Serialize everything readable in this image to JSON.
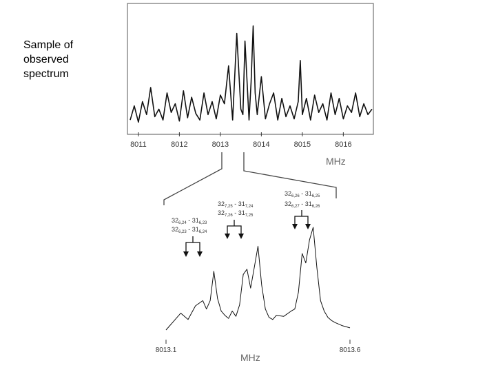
{
  "caption": {
    "lines": [
      "Sample of",
      "observed",
      "spectrum"
    ]
  },
  "chart_data": [
    {
      "type": "line",
      "title": "",
      "xlabel": "MHz",
      "ylabel": "",
      "xlim": [
        8010.8,
        8016.7
      ],
      "ticks": [
        8011,
        8012,
        8013,
        8014,
        8015,
        8016
      ],
      "tick_labels": [
        "8011",
        "8012",
        "8013",
        "8014",
        "8015",
        "8016"
      ],
      "grid": false,
      "series": [
        {
          "x": [
            8010.8,
            8010.9,
            8011.0,
            8011.1,
            8011.2,
            8011.3,
            8011.4,
            8011.5,
            8011.6,
            8011.7,
            8011.8,
            8011.9,
            8012.0,
            8012.1,
            8012.2,
            8012.3,
            8012.4,
            8012.5,
            8012.6,
            8012.7,
            8012.8,
            8012.9,
            8013.0,
            8013.1,
            8013.2,
            8013.3,
            8013.4,
            8013.5,
            8013.55,
            8013.6,
            8013.7,
            8013.75,
            8013.8,
            8013.85,
            8013.9,
            8014.0,
            8014.1,
            8014.2,
            8014.3,
            8014.4,
            8014.5,
            8014.6,
            8014.7,
            8014.8,
            8014.9,
            8014.95,
            8015.0,
            8015.1,
            8015.2,
            8015.3,
            8015.4,
            8015.5,
            8015.6,
            8015.7,
            8015.8,
            8015.9,
            8016.0,
            8016.1,
            8016.2,
            8016.3,
            8016.4,
            8016.5,
            8016.6,
            8016.7
          ],
          "y": [
            0.05,
            0.18,
            0.03,
            0.22,
            0.1,
            0.35,
            0.08,
            0.15,
            0.05,
            0.3,
            0.12,
            0.2,
            0.04,
            0.32,
            0.07,
            0.26,
            0.11,
            0.05,
            0.3,
            0.1,
            0.22,
            0.06,
            0.28,
            0.2,
            0.55,
            0.05,
            0.85,
            0.15,
            0.1,
            0.78,
            0.05,
            0.4,
            0.92,
            0.3,
            0.1,
            0.45,
            0.06,
            0.2,
            0.3,
            0.05,
            0.25,
            0.08,
            0.18,
            0.06,
            0.22,
            0.6,
            0.1,
            0.25,
            0.05,
            0.28,
            0.12,
            0.2,
            0.05,
            0.3,
            0.1,
            0.25,
            0.06,
            0.18,
            0.12,
            0.3,
            0.08,
            0.2,
            0.1,
            0.15
          ]
        }
      ]
    },
    {
      "type": "line",
      "title": "",
      "xlabel": "MHz",
      "ylabel": "",
      "xlim": [
        8013.1,
        8013.6
      ],
      "ticks": [
        8013.1,
        8013.6
      ],
      "tick_labels": [
        "8013.1",
        "8013.6"
      ],
      "grid": false,
      "series": [
        {
          "x": [
            8013.1,
            8013.12,
            8013.14,
            8013.16,
            8013.18,
            8013.2,
            8013.21,
            8013.22,
            8013.23,
            8013.24,
            8013.25,
            8013.26,
            8013.27,
            8013.28,
            8013.29,
            8013.3,
            8013.31,
            8013.32,
            8013.33,
            8013.34,
            8013.35,
            8013.36,
            8013.37,
            8013.38,
            8013.39,
            8013.4,
            8013.42,
            8013.44,
            8013.45,
            8013.46,
            8013.47,
            8013.48,
            8013.49,
            8013.5,
            8013.51,
            8013.52,
            8013.53,
            8013.54,
            8013.55,
            8013.56,
            8013.58,
            8013.6
          ],
          "y": [
            0.02,
            0.1,
            0.18,
            0.12,
            0.25,
            0.3,
            0.22,
            0.3,
            0.58,
            0.32,
            0.2,
            0.16,
            0.13,
            0.2,
            0.15,
            0.26,
            0.55,
            0.6,
            0.42,
            0.62,
            0.82,
            0.45,
            0.22,
            0.14,
            0.12,
            0.16,
            0.15,
            0.2,
            0.22,
            0.38,
            0.75,
            0.66,
            0.88,
            1.0,
            0.62,
            0.3,
            0.2,
            0.14,
            0.11,
            0.09,
            0.06,
            0.04
          ]
        }
      ],
      "annotations": [
        {
          "term1": "32",
          "sub1": "6,24",
          "term2": "31",
          "sub2": "6,23"
        },
        {
          "term1": "32",
          "sub1": "6,23",
          "term2": "31",
          "sub2": "6,24"
        },
        {
          "term1": "32",
          "sub1": "7,25",
          "term2": "31",
          "sub2": "7,24"
        },
        {
          "term1": "32",
          "sub1": "7,26",
          "term2": "31",
          "sub2": "7,25"
        },
        {
          "term1": "32",
          "sub1": "6,26",
          "term2": "31",
          "sub2": "6,25"
        },
        {
          "term1": "32",
          "sub1": "6,27",
          "term2": "31",
          "sub2": "6,26"
        }
      ]
    }
  ]
}
